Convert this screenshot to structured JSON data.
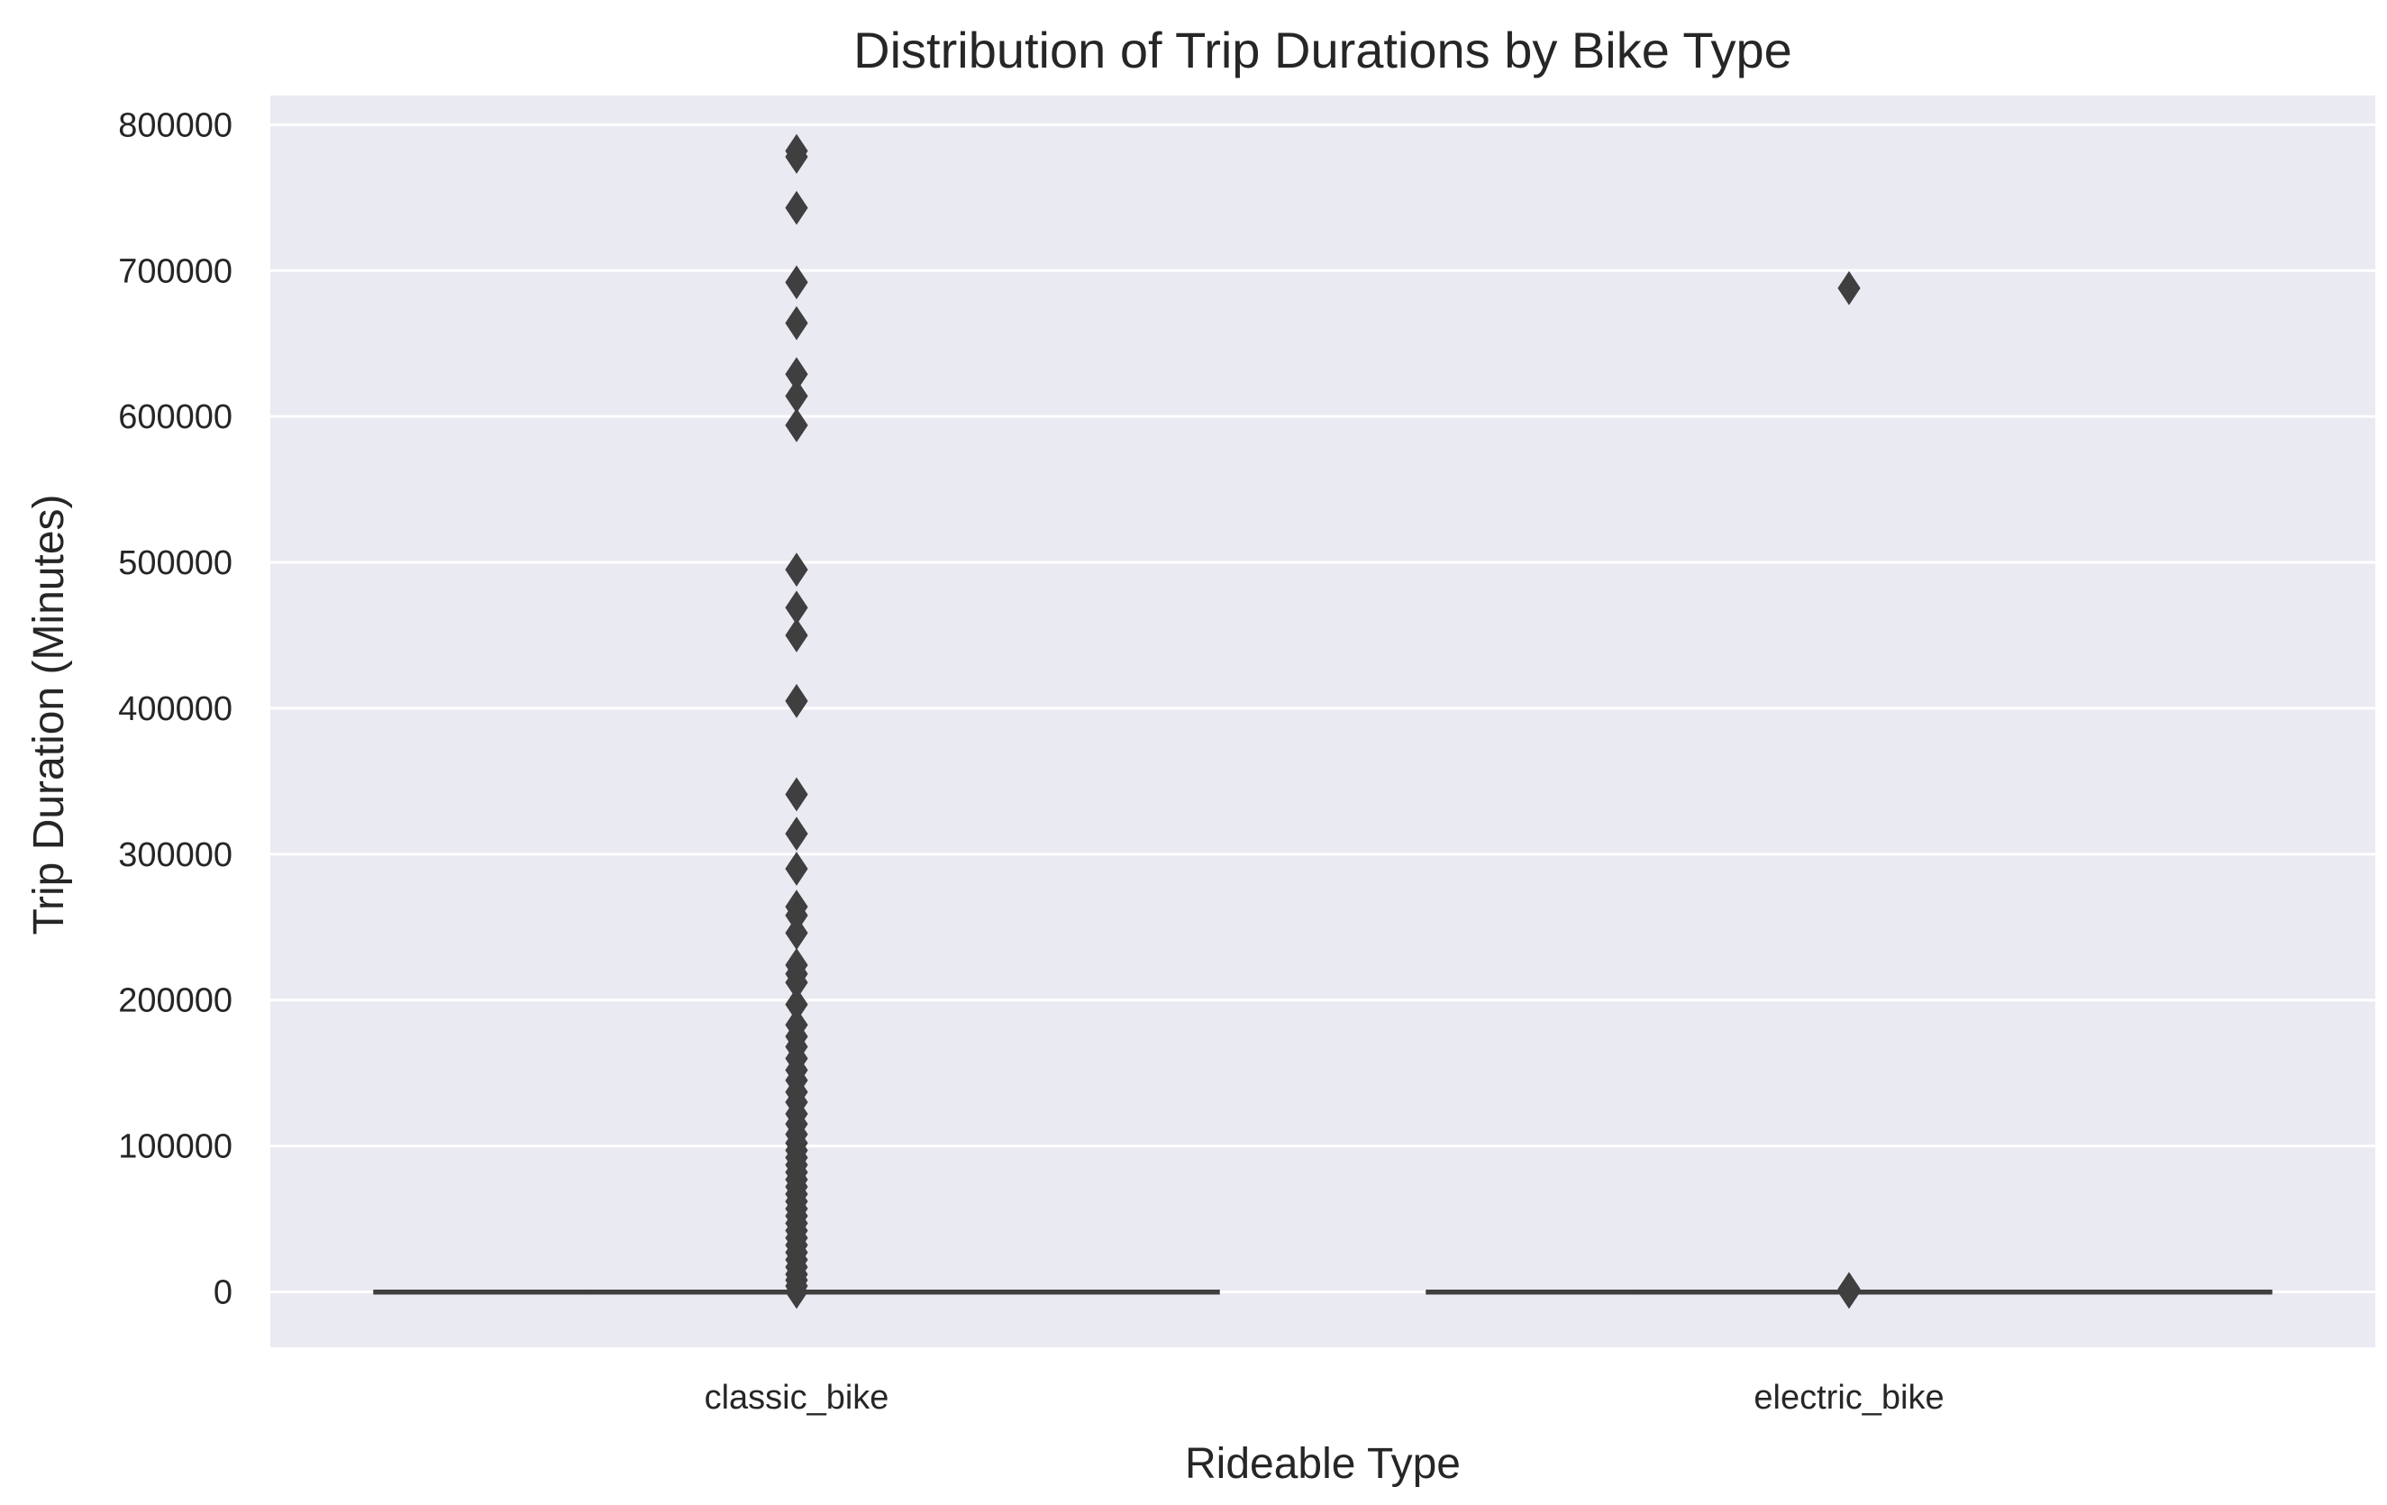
{
  "chart_data": {
    "type": "box",
    "title": "Distribution of Trip Durations by Bike Type",
    "xlabel": "Rideable Type",
    "ylabel": "Trip Duration (Minutes)",
    "categories": [
      "classic_bike",
      "electric_bike"
    ],
    "ylim": [
      -38000,
      820000
    ],
    "yticks": [
      0,
      100000,
      200000,
      300000,
      400000,
      500000,
      600000,
      700000,
      800000
    ],
    "ytick_labels": [
      "0",
      "100000",
      "200000",
      "300000",
      "400000",
      "500000",
      "600000",
      "700000",
      "800000"
    ],
    "grid": true,
    "colors": {
      "background": "#eaeaf2",
      "grid": "#ffffff",
      "marks": "#3f3f3f"
    },
    "boxes": [
      {
        "category": "classic_bike",
        "whisker_low": 0,
        "q1": 0,
        "median": 0,
        "q3": 0,
        "whisker_high": 0,
        "outliers": [
          782000,
          778000,
          743000,
          692000,
          664000,
          629000,
          614000,
          594000,
          495000,
          469000,
          450000,
          405000,
          341000,
          314000,
          290000,
          264000,
          258000,
          246000,
          224000,
          218000,
          212000,
          197000,
          183000,
          175000,
          168000,
          160000,
          152000,
          145000,
          137000,
          130000,
          122000,
          115000,
          108000,
          102000,
          97000,
          92000,
          87000,
          82000,
          77000,
          72000,
          67000,
          62000,
          57000,
          52000,
          47000,
          42000,
          37000,
          32000,
          27000,
          22000,
          17000,
          12000,
          8000,
          4000,
          0
        ]
      },
      {
        "category": "electric_bike",
        "whisker_low": 0,
        "q1": 0,
        "median": 0,
        "q3": 0,
        "whisker_high": 0,
        "outliers": [
          688000,
          2000,
          0
        ]
      }
    ]
  }
}
